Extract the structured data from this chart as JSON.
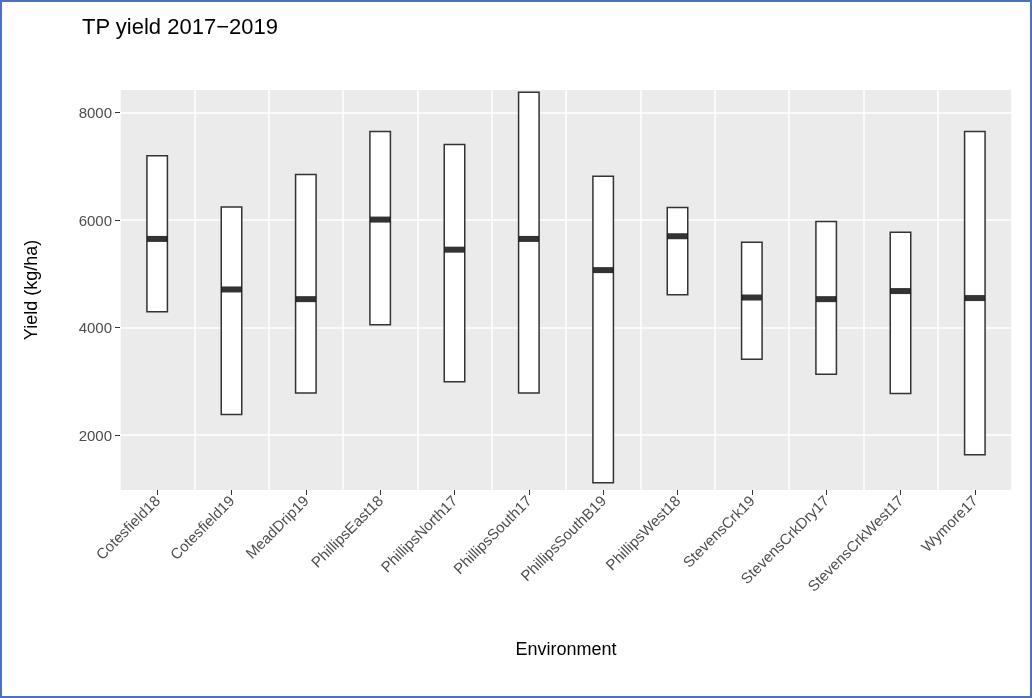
{
  "chart_data": {
    "type": "bar",
    "title": "TP yield 2017−2019",
    "xlabel": "Environment",
    "ylabel": "Yield (kg/ha)",
    "categories": [
      "Cotesfield18",
      "Cotesfield19",
      "MeadDrip19",
      "PhillipsEast18",
      "PhillipsNorth17",
      "PhillipsSouth17",
      "PhillipsSouthB19",
      "PhillipsWest18",
      "StevensCrk19",
      "StevensCrkDry17",
      "StevensCrkWest17",
      "Wymore17"
    ],
    "series": [
      {
        "color": "#ffffff",
        "base": [
          4280,
          2370,
          2770,
          4040,
          2980,
          2770,
          1100,
          4600,
          3400,
          3120,
          2760,
          1620
        ],
        "values": [
          2930,
          3890,
          4090,
          3620,
          4440,
          5620,
          5730,
          1650,
          2200,
          2870,
          3030,
          6040
        ]
      },
      {
        "type": "scatter",
        "color": "#000000",
        "x": [
          "Cotesfield18",
          "Cotesfield19",
          "MeadDrip19",
          "PhillipsEast18",
          "PhillipsNorth17",
          "PhillipsSouth17",
          "PhillipsSouthB19",
          "PhillipsWest18",
          "StevensCrk19",
          "StevensCrkDry17",
          "StevensCrkWest17",
          "Wymore17"
        ],
        "values": [
          5650,
          4710,
          4530,
          6010,
          5450,
          5650,
          5070,
          5700,
          4560,
          4530,
          4680,
          4550
        ]
      }
    ],
    "ylim": [
      980,
      8420
    ],
    "yticks": [
      2000,
      4000,
      6000,
      8000
    ],
    "grid": true,
    "marker": "square"
  }
}
